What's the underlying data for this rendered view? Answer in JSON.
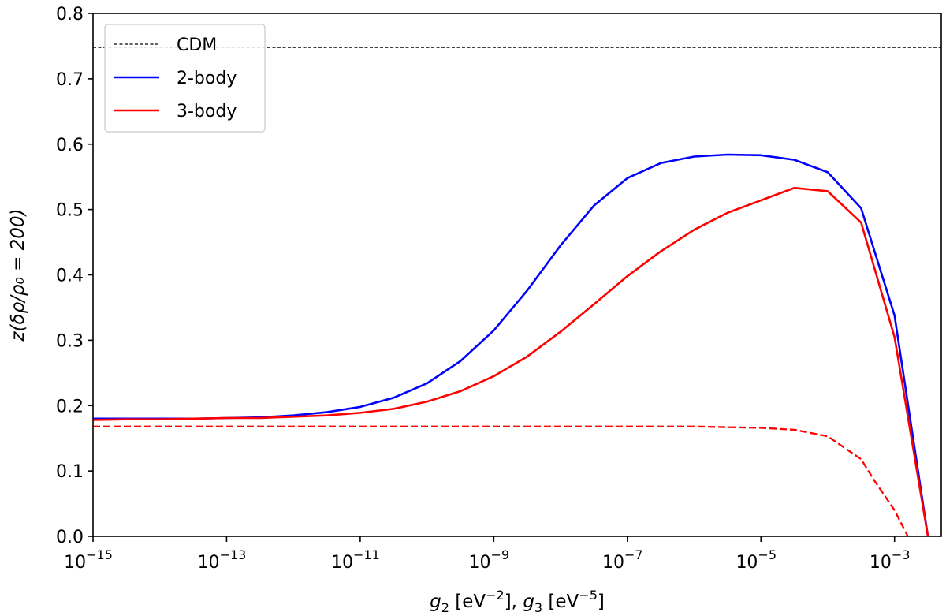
{
  "chart_data": {
    "type": "line",
    "xscale": "log",
    "xlim_exp": [
      -15,
      -2.3
    ],
    "ylim": [
      0.0,
      0.8
    ],
    "xlabel": {
      "g2": "g",
      "g2_sub": "2",
      "mid1": " [eV",
      "exp1": "−2",
      "mid2": "], ",
      "g3": "g",
      "g3_sub": "3",
      "mid3": " [eV",
      "exp2": "−5",
      "end": "]"
    },
    "ylabel": "z(δρ/ρ₀ = 200)",
    "x_ticks": [
      {
        "base": "10",
        "exp": "−15",
        "value": -15
      },
      {
        "base": "10",
        "exp": "−13",
        "value": -13
      },
      {
        "base": "10",
        "exp": "−11",
        "value": -11
      },
      {
        "base": "10",
        "exp": "−9",
        "value": -9
      },
      {
        "base": "10",
        "exp": "−7",
        "value": -7
      },
      {
        "base": "10",
        "exp": "−5",
        "value": -5
      },
      {
        "base": "10",
        "exp": "−3",
        "value": -3
      }
    ],
    "y_ticks": [
      "0.0",
      "0.1",
      "0.2",
      "0.3",
      "0.4",
      "0.5",
      "0.6",
      "0.7",
      "0.8"
    ],
    "y_tick_values": [
      0.0,
      0.1,
      0.2,
      0.3,
      0.4,
      0.5,
      0.6,
      0.7,
      0.8
    ],
    "legend": {
      "position": "top-left",
      "entries": [
        {
          "label": "CDM",
          "color": "#000000",
          "style": "dashed"
        },
        {
          "label": "2-body",
          "color": "#0000ff",
          "style": "solid"
        },
        {
          "label": "3-body",
          "color": "#ff0000",
          "style": "solid"
        }
      ]
    },
    "series": [
      {
        "name": "CDM",
        "color": "#000000",
        "style": "dashed",
        "width": 1.3,
        "points": [
          [
            -15,
            0.748
          ],
          [
            -2.3,
            0.748
          ]
        ]
      },
      {
        "name": "2-body",
        "color": "#0000ff",
        "style": "solid",
        "width": 2.6,
        "points": [
          [
            -15,
            0.18
          ],
          [
            -14.5,
            0.18
          ],
          [
            -14,
            0.18
          ],
          [
            -13.5,
            0.18
          ],
          [
            -13,
            0.181
          ],
          [
            -12.5,
            0.182
          ],
          [
            -12,
            0.185
          ],
          [
            -11.5,
            0.19
          ],
          [
            -11,
            0.198
          ],
          [
            -10.5,
            0.212
          ],
          [
            -10,
            0.234
          ],
          [
            -9.5,
            0.268
          ],
          [
            -9,
            0.315
          ],
          [
            -8.5,
            0.376
          ],
          [
            -8,
            0.445
          ],
          [
            -7.5,
            0.506
          ],
          [
            -7,
            0.548
          ],
          [
            -6.5,
            0.571
          ],
          [
            -6,
            0.581
          ],
          [
            -5.5,
            0.584
          ],
          [
            -5,
            0.583
          ],
          [
            -4.5,
            0.576
          ],
          [
            -4,
            0.557
          ],
          [
            -3.5,
            0.502
          ],
          [
            -3,
            0.338
          ],
          [
            -2.5,
            0.0
          ]
        ]
      },
      {
        "name": "3-body",
        "color": "#ff0000",
        "style": "solid",
        "width": 2.6,
        "points": [
          [
            -15,
            0.178
          ],
          [
            -14.5,
            0.179
          ],
          [
            -14,
            0.179
          ],
          [
            -13.5,
            0.18
          ],
          [
            -13,
            0.181
          ],
          [
            -12.5,
            0.181
          ],
          [
            -12,
            0.183
          ],
          [
            -11.5,
            0.185
          ],
          [
            -11,
            0.189
          ],
          [
            -10.5,
            0.195
          ],
          [
            -10,
            0.206
          ],
          [
            -9.5,
            0.222
          ],
          [
            -9,
            0.245
          ],
          [
            -8.5,
            0.275
          ],
          [
            -8,
            0.313
          ],
          [
            -7.5,
            0.355
          ],
          [
            -7,
            0.398
          ],
          [
            -6.5,
            0.436
          ],
          [
            -6,
            0.469
          ],
          [
            -5.5,
            0.495
          ],
          [
            -5,
            0.514
          ],
          [
            -4.5,
            0.533
          ],
          [
            -4,
            0.528
          ],
          [
            -3.5,
            0.48
          ],
          [
            -3,
            0.305
          ],
          [
            -2.5,
            0.0
          ]
        ]
      },
      {
        "name": "3-body (dashed)",
        "color": "#ff0000",
        "style": "dashed",
        "width": 2.3,
        "points": [
          [
            -15,
            0.168
          ],
          [
            -14,
            0.168
          ],
          [
            -13,
            0.168
          ],
          [
            -12,
            0.168
          ],
          [
            -11,
            0.168
          ],
          [
            -10,
            0.168
          ],
          [
            -9,
            0.168
          ],
          [
            -8,
            0.168
          ],
          [
            -7,
            0.168
          ],
          [
            -6,
            0.168
          ],
          [
            -5.5,
            0.167
          ],
          [
            -5,
            0.166
          ],
          [
            -4.5,
            0.163
          ],
          [
            -4,
            0.153
          ],
          [
            -3.5,
            0.118
          ],
          [
            -3.3,
            0.085
          ],
          [
            -3,
            0.04
          ],
          [
            -2.8,
            0.0
          ]
        ]
      }
    ]
  }
}
